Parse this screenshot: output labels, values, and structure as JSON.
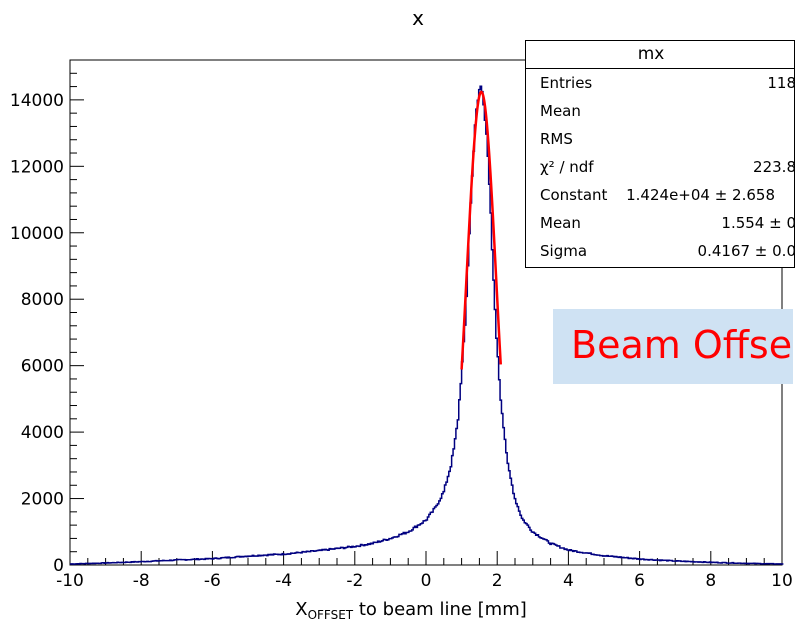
{
  "chart_data": {
    "type": "histogram",
    "title": "x",
    "xlabel_main": "X",
    "xlabel_sub": "OFFSET",
    "xlabel_rest": " to beam line [mm]",
    "xlim": [
      -10,
      10
    ],
    "ylim": [
      0,
      15200
    ],
    "xticks": [
      "-10",
      "-8",
      "-6",
      "-4",
      "-2",
      "0",
      "2",
      "4",
      "6",
      "8",
      "10"
    ],
    "yticks": [
      "0",
      "2000",
      "4000",
      "6000",
      "8000",
      "10000",
      "12000",
      "14000"
    ],
    "histogram": {
      "color": "#000080",
      "x": [
        -10,
        -9,
        -8,
        -7,
        -6,
        -5,
        -4,
        -3,
        -2,
        -1.5,
        -1,
        -0.5,
        0,
        0.25,
        0.5,
        0.7,
        0.8,
        0.9,
        1.0,
        1.1,
        1.2,
        1.3,
        1.4,
        1.5,
        1.55,
        1.6,
        1.7,
        1.8,
        1.9,
        2.0,
        2.1,
        2.2,
        2.3,
        2.5,
        2.7,
        3.0,
        3.5,
        4,
        5,
        6,
        7,
        8,
        9,
        10
      ],
      "y": [
        30,
        60,
        100,
        150,
        190,
        270,
        330,
        430,
        560,
        650,
        800,
        1000,
        1350,
        1700,
        2200,
        3000,
        3600,
        4400,
        5800,
        7200,
        9500,
        11800,
        13500,
        14300,
        14400,
        14200,
        13000,
        11000,
        8500,
        6500,
        5000,
        4000,
        3000,
        2000,
        1400,
        1000,
        650,
        450,
        280,
        180,
        120,
        80,
        50,
        30
      ]
    },
    "fit": {
      "color": "#ff0000",
      "constant": 14240,
      "mean": 1.554,
      "sigma": 0.4167,
      "range": [
        1.0,
        2.1
      ]
    }
  },
  "stats": {
    "title": "mx",
    "rows": [
      {
        "label": "Entries",
        "value": "118"
      },
      {
        "label": "Mean",
        "value": ""
      },
      {
        "label": "RMS",
        "value": ""
      },
      {
        "label": "χ² / ndf",
        "value": "223.8"
      },
      {
        "label": "Constant",
        "value": "1.424e+04 ± 2.658"
      },
      {
        "label": "Mean",
        "value": "1.554 ± 0"
      },
      {
        "label": "Sigma",
        "value": "0.4167 ± 0.0"
      }
    ]
  },
  "overlay_text": "Beam Offse"
}
